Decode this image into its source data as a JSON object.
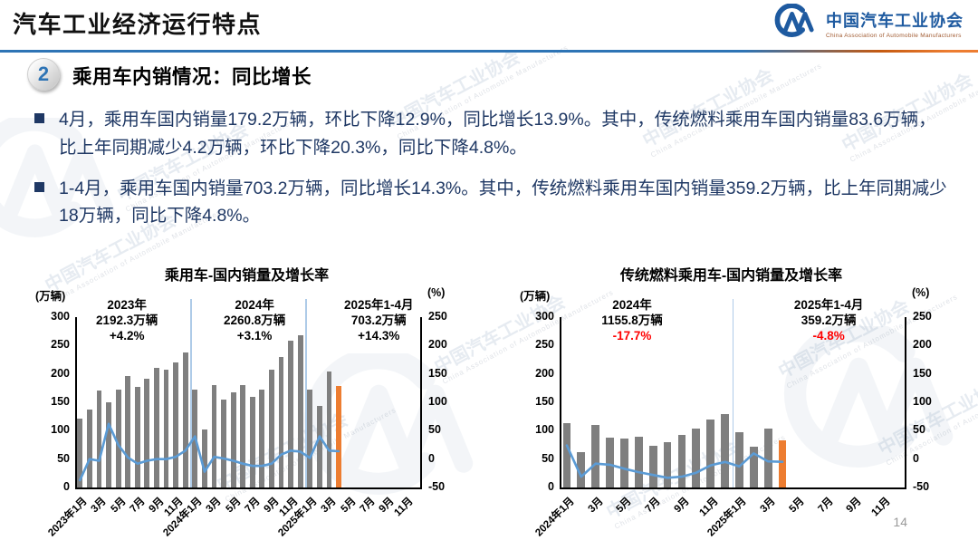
{
  "header": {
    "title": "汽车工业经济运行特点",
    "logo_cn": "中国汽车工业协会",
    "logo_en": "China Association of Automobile Manufacturers"
  },
  "section": {
    "number": "2",
    "title": "乘用车内销情况：同比增长"
  },
  "bullets": [
    {
      "text": "4月，乘用车国内销量179.2万辆，环比下降12.9%，同比增长13.9%。其中，传统燃料乘用车国内销量83.6万辆，比上年同期减少4.2万辆，环比下降20.3%，同比下降4.8%。"
    },
    {
      "text": "1-4月，乘用车国内销量703.2万辆，同比增长14.3%。其中，传统燃料乘用车国内销量359.2万辆，比上年同期减少18万辆，同比下降4.8%。"
    }
  ],
  "watermark": {
    "text": "中国汽车工业协会",
    "subtext": "China Association of Automobile Manufacturers"
  },
  "footer": {
    "page_number": "14"
  },
  "colors": {
    "accent_blue": "#2E74B5",
    "navy_text": "#1F3864",
    "bar_gray": "#7F7F7F",
    "bar_orange": "#ED7D31",
    "line_blue": "#5B9BD5",
    "negative_red": "#FF0000"
  },
  "chart_data": [
    {
      "type": "bar+line",
      "title": "乘用车-国内销量及增长率",
      "left_axis_unit": "(万辆)",
      "right_axis_unit": "(%)",
      "left_range": [
        0,
        300
      ],
      "right_range": [
        -50,
        250
      ],
      "left_ticks": [
        300,
        250,
        200,
        150,
        100,
        50,
        0
      ],
      "right_ticks": [
        250,
        200,
        150,
        100,
        50,
        0,
        -50
      ],
      "total_slots": 36,
      "x_label_every": 2,
      "x_labels": [
        "2023年1月",
        "3月",
        "5月",
        "7月",
        "9月",
        "11月",
        "2024年1月",
        "3月",
        "5月",
        "7月",
        "9月",
        "11月",
        "2025年1月",
        "3月",
        "5月",
        "7月",
        "9月",
        "11月"
      ],
      "year_separator_slots": [
        12,
        24
      ],
      "series": [
        {
          "name": "国内销量(万辆)",
          "type": "bar",
          "axis": "left",
          "values": [
            122,
            138,
            170,
            150,
            172,
            196,
            177,
            192,
            211,
            207,
            221,
            237,
            173,
            102,
            180,
            155,
            167,
            180,
            159,
            173,
            207,
            230,
            258,
            268,
            172,
            143,
            205,
            179.2
          ],
          "color": "#7F7F7F",
          "last_color": "#ED7D31"
        },
        {
          "name": "同比增长率(%)",
          "type": "line",
          "axis": "right",
          "values": [
            -37,
            0,
            -3,
            62,
            25,
            3,
            -8,
            -3,
            0,
            0,
            4,
            15,
            40,
            -22,
            4,
            1,
            -3,
            -8,
            -12,
            -12,
            -8,
            8,
            15,
            13,
            2,
            40,
            15,
            13.9
          ],
          "color": "#5B9BD5"
        }
      ],
      "annotations": [
        {
          "lines": [
            "2023年",
            "2192.3万辆",
            "+4.2%"
          ],
          "highlight_color": "#000000",
          "x_frac": 0.15
        },
        {
          "lines": [
            "2024年",
            "2260.8万辆",
            "+3.1%"
          ],
          "highlight_color": "#000000",
          "x_frac": 0.52
        },
        {
          "lines": [
            "2025年1-4月",
            "703.2万辆",
            "+14.3%"
          ],
          "highlight_color": "#000000",
          "x_frac": 0.88
        }
      ]
    },
    {
      "type": "bar+line",
      "title": "传统燃料乘用车-国内销量及增长率",
      "left_axis_unit": "(万辆)",
      "right_axis_unit": "(%)",
      "left_range": [
        0,
        300
      ],
      "right_range": [
        -50,
        250
      ],
      "left_ticks": [
        300,
        250,
        200,
        150,
        100,
        50,
        0
      ],
      "right_ticks": [
        250,
        200,
        150,
        100,
        50,
        0,
        -50
      ],
      "total_slots": 24,
      "x_label_every": 2,
      "x_labels": [
        "2024年1月",
        "3月",
        "5月",
        "7月",
        "9月",
        "11月",
        "2025年1月",
        "3月",
        "5月",
        "7月",
        "9月",
        "11月"
      ],
      "year_separator_slots": [
        12
      ],
      "series": [
        {
          "name": "国内销量(万辆)",
          "type": "bar",
          "axis": "left",
          "values": [
            113,
            63,
            110,
            88,
            86,
            89,
            74,
            79,
            93,
            103,
            120,
            129,
            97,
            72,
            104,
            83.6
          ],
          "color": "#7F7F7F",
          "last_color": "#ED7D31"
        },
        {
          "name": "同比增长率(%)",
          "type": "line",
          "axis": "right",
          "values": [
            24,
            -31,
            -8,
            -10,
            -17,
            -23,
            -28,
            -33,
            -31,
            -24,
            -11,
            -5,
            -13,
            10,
            -4,
            -4.8
          ],
          "color": "#5B9BD5"
        }
      ],
      "annotations": [
        {
          "lines": [
            "2024年",
            "1155.8万辆",
            "-17.7%"
          ],
          "highlight_color": "#FF0000",
          "x_frac": 0.21
        },
        {
          "lines": [
            "2025年1-4月",
            "359.2万辆",
            "-4.8%"
          ],
          "highlight_color": "#FF0000",
          "x_frac": 0.78
        }
      ]
    }
  ]
}
